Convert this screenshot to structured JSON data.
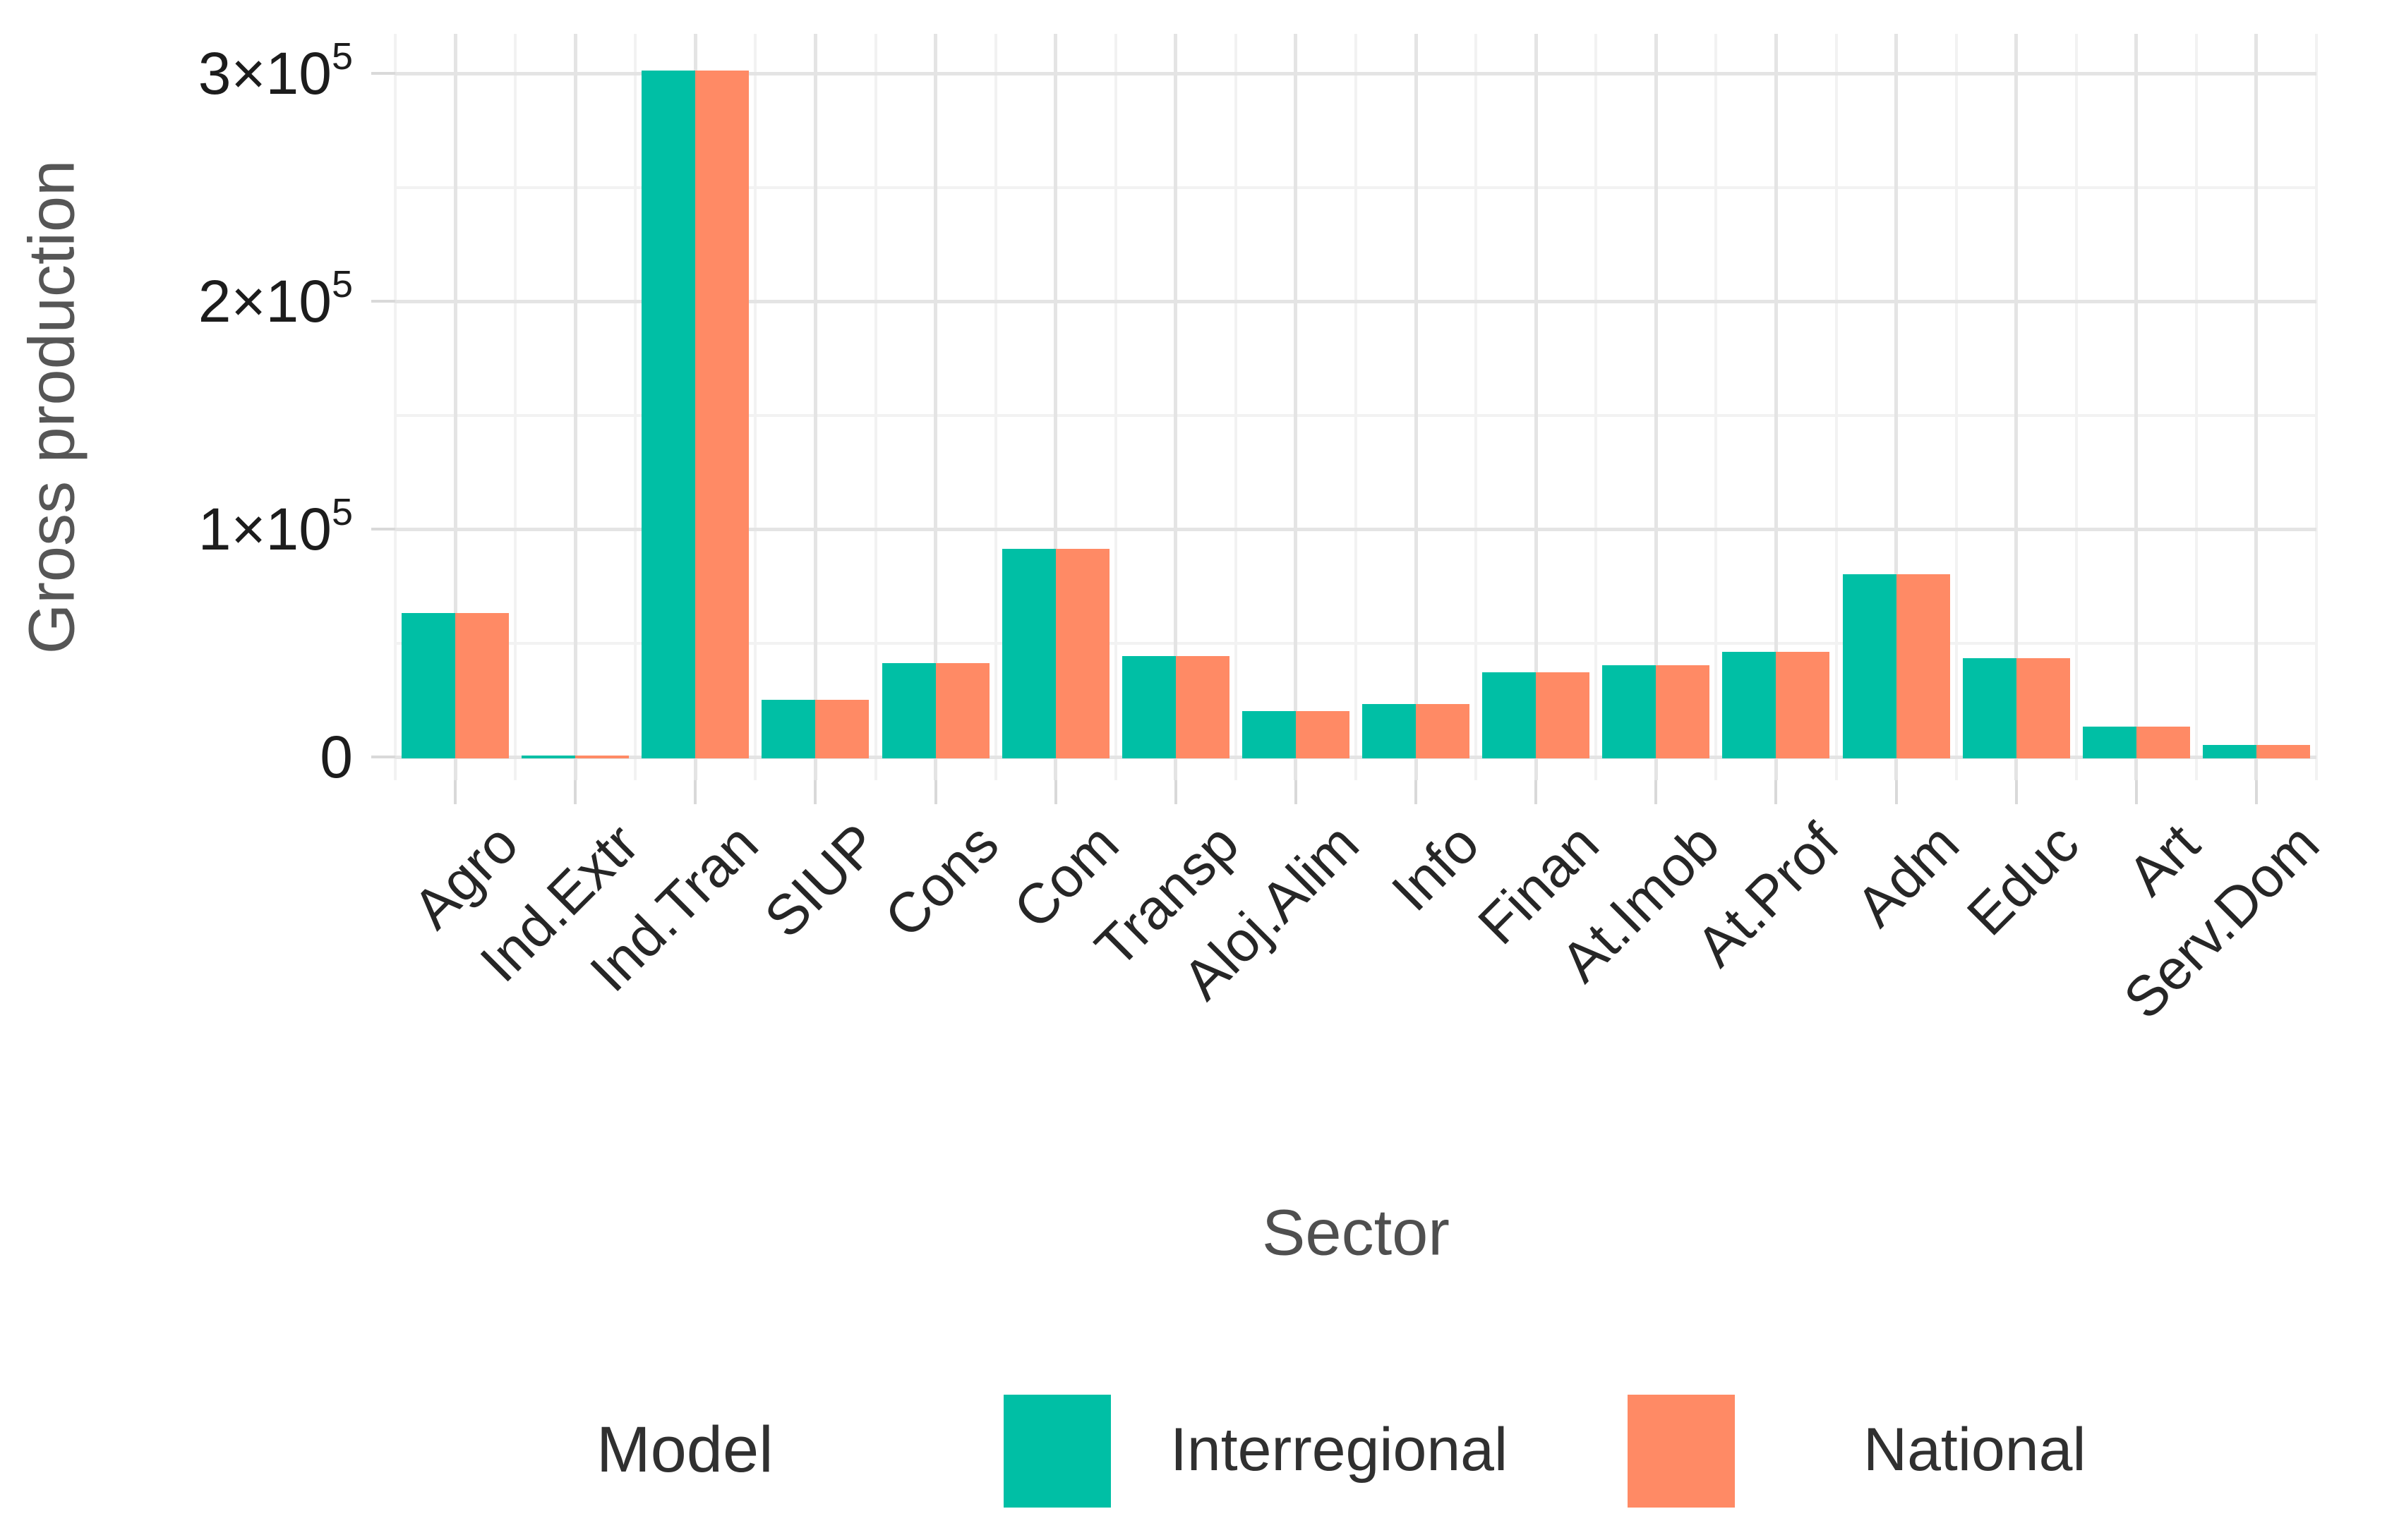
{
  "chart_data": {
    "type": "bar",
    "title": "",
    "xlabel": "Sector",
    "ylabel": "Gross production",
    "legend_title": "Model",
    "legend_position": "bottom",
    "grid": true,
    "categories": [
      "Agro",
      "Ind.Extr",
      "Ind.Tran",
      "SIUP",
      "Cons",
      "Com",
      "Transp",
      "Aloj.Alim",
      "Info",
      "Finan",
      "At.Imob",
      "At.Prof",
      "Adm",
      "Educ",
      "Art",
      "Serv.Dom"
    ],
    "series": [
      {
        "name": "Interregional",
        "color": "#00BFA5",
        "values": [
          64000,
          1500,
          302000,
          26000,
          42000,
          92000,
          45000,
          21000,
          24000,
          38000,
          41000,
          47000,
          81000,
          44000,
          14000,
          6000
        ]
      },
      {
        "name": "National",
        "color": "#FF8A65",
        "values": [
          64000,
          1500,
          302000,
          26000,
          42000,
          92000,
          45000,
          21000,
          24000,
          38000,
          41000,
          47000,
          81000,
          44000,
          14000,
          6000
        ]
      }
    ],
    "y_ticks": [
      {
        "value": 0,
        "label": "0",
        "sup": ""
      },
      {
        "value": 100000,
        "label": "1×10",
        "sup": "5"
      },
      {
        "value": 200000,
        "label": "2×10",
        "sup": "5"
      },
      {
        "value": 300000,
        "label": "3×10",
        "sup": "5"
      }
    ],
    "ylim": [
      0,
      316000
    ]
  },
  "colors": {
    "background": "#ffffff",
    "grid_major": "#e4e4e4",
    "grid_minor": "#f2f2f2",
    "tick_mark": "#d9d9d9",
    "tick_label": "#1c1c1c",
    "axis_title": "#545454",
    "legend_text": "#303030",
    "series_interregional": "#00BFA5",
    "series_national": "#FF8A65"
  }
}
